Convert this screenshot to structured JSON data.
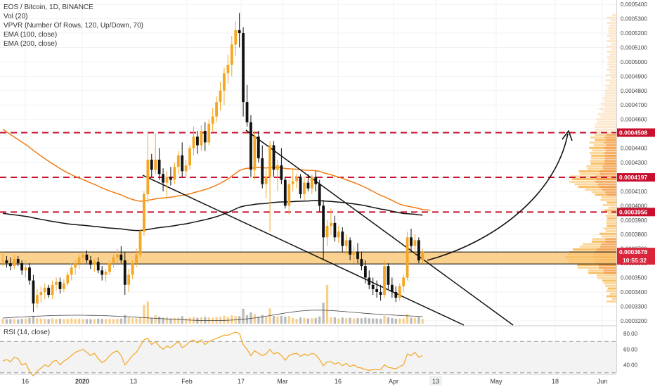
{
  "legend": {
    "title": "EOS / Bitcoin, 1D, BINANCE",
    "vol": "Vol (20)",
    "vpvr": "VPVR (Number Of Rows, 120, Up/Down, 70)",
    "ema100": "EMA (100, close)",
    "ema200": "EMA (200, close)",
    "rsi": "RSI (14, close)"
  },
  "colors": {
    "up": "#f5a623",
    "down": "#111111",
    "level_line": "#c8102e",
    "ema100": "#f07d15",
    "ema200": "#111111",
    "support_zone": "#f9c26a",
    "rsi_line": "#f5a623"
  },
  "chart_data": [
    {
      "type": "candlestick",
      "title": "EOS / Bitcoin, 1D, BINANCE",
      "y_axis_ticks": [
        "0.0005400",
        "0.0005300",
        "0.0005200",
        "0.0005100",
        "0.0005000",
        "0.0004900",
        "0.0004800",
        "0.0004700",
        "0.0004600",
        "0.0004500",
        "0.0004400",
        "0.0004300",
        "0.0004200",
        "0.0004100",
        "0.0004000",
        "0.0003900",
        "0.0003800",
        "0.0003700",
        "0.0003600",
        "0.0003500",
        "0.0003400",
        "0.0003300",
        "0.0003200"
      ],
      "ylim": [
        0.000317,
        0.000543
      ],
      "x_tick_labels": [
        "16",
        "2020",
        "13",
        "Feb",
        "17",
        "Mar",
        "16",
        "Apr",
        "13",
        "May",
        "18",
        "Jun"
      ],
      "highlighted_x_label": "13",
      "horizontal_levels": [
        {
          "label": "0.0004508",
          "value": 0.0004508
        },
        {
          "label": "0.0004197",
          "value": 0.0004197
        },
        {
          "label": "0.0003956",
          "value": 0.0003956
        }
      ],
      "current_price": {
        "label": "0.0003678",
        "value": 0.0003678,
        "countdown": "10:55:32"
      },
      "support_zone": {
        "low": 0.0003595,
        "high": 0.0003678
      },
      "ohlc": [
        [
          3.62,
          3.68,
          3.58,
          3.62
        ],
        [
          3.62,
          3.65,
          3.57,
          3.6
        ],
        [
          3.6,
          3.64,
          3.55,
          3.58
        ],
        [
          3.58,
          3.66,
          3.56,
          3.63
        ],
        [
          3.63,
          3.65,
          3.58,
          3.6
        ],
        [
          3.6,
          3.62,
          3.52,
          3.55
        ],
        [
          3.55,
          3.62,
          3.5,
          3.57
        ],
        [
          3.57,
          3.6,
          3.45,
          3.48
        ],
        [
          3.48,
          3.52,
          3.26,
          3.32
        ],
        [
          3.32,
          3.42,
          3.29,
          3.38
        ],
        [
          3.38,
          3.44,
          3.33,
          3.4
        ],
        [
          3.4,
          3.46,
          3.35,
          3.43
        ],
        [
          3.43,
          3.45,
          3.36,
          3.38
        ],
        [
          3.38,
          3.48,
          3.35,
          3.45
        ],
        [
          3.45,
          3.5,
          3.41,
          3.47
        ],
        [
          3.47,
          3.5,
          3.39,
          3.42
        ],
        [
          3.42,
          3.49,
          3.4,
          3.46
        ],
        [
          3.46,
          3.54,
          3.44,
          3.52
        ],
        [
          3.52,
          3.6,
          3.48,
          3.57
        ],
        [
          3.57,
          3.62,
          3.52,
          3.6
        ],
        [
          3.6,
          3.66,
          3.56,
          3.64
        ],
        [
          3.64,
          3.68,
          3.59,
          3.66
        ],
        [
          3.66,
          3.69,
          3.6,
          3.62
        ],
        [
          3.62,
          3.65,
          3.56,
          3.59
        ],
        [
          3.59,
          3.63,
          3.54,
          3.61
        ],
        [
          3.61,
          3.64,
          3.53,
          3.55
        ],
        [
          3.55,
          3.58,
          3.48,
          3.52
        ],
        [
          3.52,
          3.56,
          3.47,
          3.54
        ],
        [
          3.54,
          3.62,
          3.52,
          3.6
        ],
        [
          3.6,
          3.66,
          3.57,
          3.64
        ],
        [
          3.64,
          3.7,
          3.6,
          3.66
        ],
        [
          3.66,
          3.72,
          3.6,
          3.62
        ],
        [
          3.62,
          3.68,
          3.38,
          3.45
        ],
        [
          3.45,
          3.56,
          3.4,
          3.52
        ],
        [
          3.52,
          3.62,
          3.49,
          3.6
        ],
        [
          3.6,
          3.7,
          3.57,
          3.66
        ],
        [
          3.66,
          3.84,
          3.64,
          3.82
        ],
        [
          3.82,
          4.1,
          3.79,
          4.08
        ],
        [
          4.08,
          4.5,
          4.02,
          4.32
        ],
        [
          4.32,
          4.36,
          4.2,
          4.25
        ],
        [
          4.25,
          4.5,
          4.22,
          4.32
        ],
        [
          4.32,
          4.4,
          4.18,
          4.22
        ],
        [
          4.22,
          4.26,
          4.1,
          4.16
        ],
        [
          4.16,
          4.24,
          4.05,
          4.2
        ],
        [
          4.2,
          4.27,
          4.14,
          4.18
        ],
        [
          4.18,
          4.3,
          4.15,
          4.27
        ],
        [
          4.27,
          4.38,
          4.22,
          4.35
        ],
        [
          4.35,
          4.44,
          4.2,
          4.24
        ],
        [
          4.24,
          4.32,
          4.2,
          4.28
        ],
        [
          4.28,
          4.42,
          4.25,
          4.4
        ],
        [
          4.4,
          4.55,
          4.35,
          4.48
        ],
        [
          4.48,
          4.52,
          4.36,
          4.42
        ],
        [
          4.42,
          4.56,
          4.38,
          4.52
        ],
        [
          4.52,
          4.58,
          4.38,
          4.44
        ],
        [
          4.44,
          4.6,
          4.42,
          4.57
        ],
        [
          4.57,
          4.68,
          4.52,
          4.62
        ],
        [
          4.62,
          4.76,
          4.58,
          4.72
        ],
        [
          4.72,
          4.86,
          4.66,
          4.8
        ],
        [
          4.8,
          4.96,
          4.7,
          4.92
        ],
        [
          4.92,
          5.05,
          4.85,
          4.98
        ],
        [
          4.98,
          5.18,
          4.9,
          5.12
        ],
        [
          5.12,
          5.28,
          5.04,
          5.22
        ],
        [
          5.22,
          5.34,
          5.1,
          5.2
        ],
        [
          5.2,
          5.24,
          4.62,
          4.72
        ],
        [
          4.72,
          4.84,
          4.55,
          4.58
        ],
        [
          4.58,
          4.63,
          4.2,
          4.25
        ],
        [
          4.25,
          4.52,
          4.18,
          4.48
        ],
        [
          4.48,
          4.52,
          4.3,
          4.33
        ],
        [
          4.33,
          4.42,
          4.12,
          4.15
        ],
        [
          4.15,
          4.25,
          4.05,
          4.2
        ],
        [
          4.2,
          4.45,
          3.82,
          4.42
        ],
        [
          4.42,
          4.45,
          4.2,
          4.25
        ],
        [
          4.25,
          4.32,
          4.1,
          4.28
        ],
        [
          4.28,
          4.4,
          4.15,
          4.18
        ],
        [
          4.18,
          4.2,
          3.98,
          4.0
        ],
        [
          4.0,
          4.18,
          3.94,
          4.15
        ],
        [
          4.15,
          4.25,
          4.1,
          4.17
        ],
        [
          4.17,
          4.22,
          4.12,
          4.2
        ],
        [
          4.2,
          4.22,
          4.05,
          4.08
        ],
        [
          4.08,
          4.2,
          4.04,
          4.16
        ],
        [
          4.16,
          4.22,
          4.1,
          4.12
        ],
        [
          4.12,
          4.22,
          4.08,
          4.2
        ],
        [
          4.2,
          4.24,
          4.1,
          4.15
        ],
        [
          4.15,
          4.18,
          3.96,
          4.0
        ],
        [
          4.0,
          4.04,
          3.62,
          3.78
        ],
        [
          3.78,
          3.9,
          3.72,
          3.86
        ],
        [
          3.86,
          3.98,
          3.8,
          3.88
        ],
        [
          3.88,
          3.93,
          3.75,
          3.78
        ],
        [
          3.78,
          3.86,
          3.74,
          3.82
        ],
        [
          3.82,
          3.85,
          3.68,
          3.72
        ],
        [
          3.72,
          3.8,
          3.66,
          3.76
        ],
        [
          3.76,
          3.78,
          3.62,
          3.66
        ],
        [
          3.66,
          3.72,
          3.6,
          3.68
        ],
        [
          3.68,
          3.74,
          3.6,
          3.63
        ],
        [
          3.63,
          3.68,
          3.55,
          3.58
        ],
        [
          3.58,
          3.62,
          3.46,
          3.5
        ],
        [
          3.5,
          3.55,
          3.42,
          3.45
        ],
        [
          3.45,
          3.5,
          3.38,
          3.42
        ],
        [
          3.42,
          3.48,
          3.36,
          3.4
        ],
        [
          3.4,
          3.45,
          3.34,
          3.38
        ],
        [
          3.38,
          3.62,
          3.36,
          3.58
        ],
        [
          3.58,
          3.6,
          3.42,
          3.45
        ],
        [
          3.45,
          3.5,
          3.36,
          3.4
        ],
        [
          3.4,
          3.44,
          3.33,
          3.36
        ],
        [
          3.36,
          3.46,
          3.34,
          3.44
        ],
        [
          3.44,
          3.52,
          3.4,
          3.5
        ],
        [
          3.5,
          3.82,
          3.48,
          3.78
        ],
        [
          3.78,
          3.84,
          3.68,
          3.72
        ],
        [
          3.72,
          3.8,
          3.65,
          3.76
        ],
        [
          3.76,
          3.78,
          3.6,
          3.62
        ],
        [
          3.62,
          3.7,
          3.6,
          3.68
        ]
      ]
    },
    {
      "type": "line",
      "title": "RSI (14, close)",
      "y_axis_ticks": [
        "80.00",
        "60.00",
        "40.00"
      ],
      "ylim": [
        28,
        90
      ],
      "reference_levels": [
        70,
        30
      ],
      "values": [
        45,
        47,
        44,
        50,
        48,
        40,
        42,
        32,
        26,
        32,
        36,
        40,
        38,
        44,
        46,
        40,
        45,
        48,
        52,
        56,
        58,
        60,
        56,
        52,
        55,
        48,
        43,
        46,
        52,
        56,
        58,
        52,
        40,
        46,
        52,
        56,
        64,
        72,
        74,
        66,
        70,
        64,
        60,
        64,
        62,
        66,
        70,
        62,
        65,
        70,
        72,
        68,
        72,
        66,
        70,
        72,
        74,
        76,
        78,
        78,
        80,
        82,
        80,
        66,
        60,
        52,
        58,
        55,
        52,
        54,
        60,
        54,
        56,
        52,
        46,
        52,
        54,
        55,
        51,
        54,
        52,
        55,
        53,
        47,
        39,
        44,
        44,
        41,
        43,
        39,
        42,
        38,
        40,
        37,
        36,
        34,
        33,
        34,
        34,
        34,
        40,
        37,
        36,
        35,
        38,
        40,
        54,
        52,
        56,
        50,
        52
      ]
    }
  ]
}
